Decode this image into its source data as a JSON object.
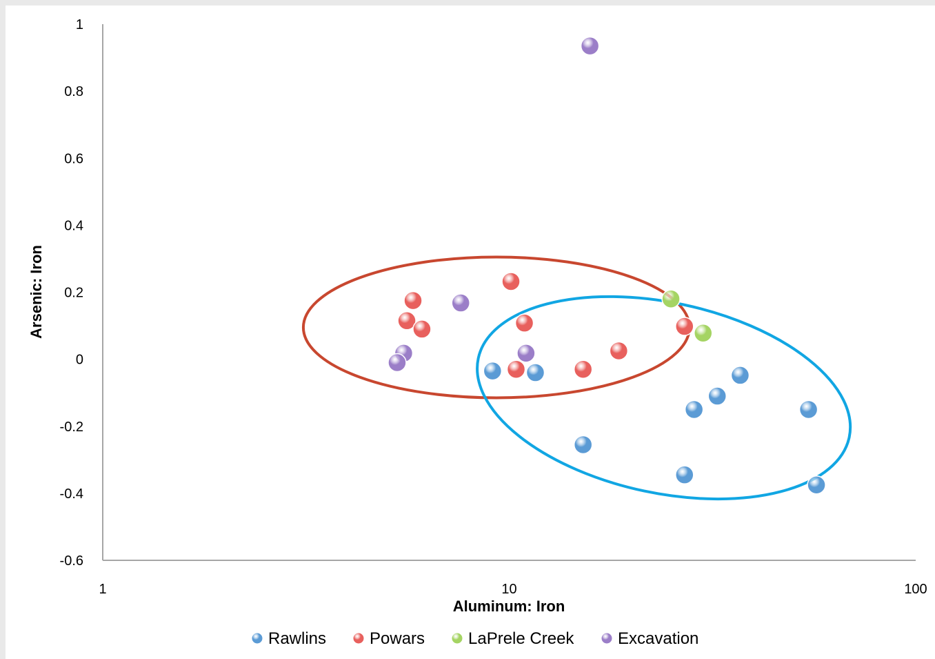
{
  "chart_data": {
    "type": "scatter",
    "xlabel": "Aluminum: Iron",
    "ylabel": "Arsenic: Iron",
    "x_scale": "log",
    "xlim": [
      1,
      100
    ],
    "ylim": [
      -0.6,
      1
    ],
    "x_ticks": [
      {
        "value": 1,
        "label": "1"
      },
      {
        "value": 10,
        "label": "10"
      },
      {
        "value": 100,
        "label": "100"
      }
    ],
    "y_ticks": [
      {
        "value": 1,
        "label": "1"
      },
      {
        "value": 0.8,
        "label": "0.8"
      },
      {
        "value": 0.6,
        "label": "0.6"
      },
      {
        "value": 0.4,
        "label": "0.4"
      },
      {
        "value": 0.2,
        "label": "0.2"
      },
      {
        "value": 0,
        "label": "0"
      },
      {
        "value": -0.2,
        "label": "-0.2"
      },
      {
        "value": -0.4,
        "label": "-0.4"
      },
      {
        "value": -0.6,
        "label": "-0.6"
      }
    ],
    "grid": false,
    "legend_position": "bottom",
    "series": [
      {
        "name": "Rawlins",
        "color": "#5b9bd5",
        "points": [
          [
            9.1,
            -0.035
          ],
          [
            11.6,
            -0.04
          ],
          [
            15.2,
            -0.255
          ],
          [
            27.0,
            -0.345
          ],
          [
            28.5,
            -0.15
          ],
          [
            32.5,
            -0.11
          ],
          [
            37.0,
            -0.048
          ],
          [
            54.5,
            -0.15
          ],
          [
            57.0,
            -0.375
          ]
        ]
      },
      {
        "name": "Powars",
        "color": "#e8605d",
        "points": [
          [
            5.8,
            0.175
          ],
          [
            5.6,
            0.115
          ],
          [
            6.1,
            0.09
          ],
          [
            10.1,
            0.232
          ],
          [
            10.9,
            0.108
          ],
          [
            10.4,
            -0.03
          ],
          [
            15.2,
            -0.03
          ],
          [
            18.6,
            0.025
          ],
          [
            27.0,
            0.098
          ]
        ]
      },
      {
        "name": "LaPrele Creek",
        "color": "#a5d463",
        "points": [
          [
            25.0,
            0.18
          ],
          [
            30.0,
            0.078
          ]
        ]
      },
      {
        "name": "Excavation",
        "color": "#9b7ec8",
        "points": [
          [
            15.8,
            0.935
          ],
          [
            7.6,
            0.168
          ],
          [
            5.5,
            0.018
          ],
          [
            5.3,
            -0.01
          ],
          [
            11.0,
            0.018
          ]
        ]
      }
    ],
    "ellipses": [
      {
        "color": "#c8472f",
        "cx": 9.3,
        "cy": 0.095,
        "rx_px": 280,
        "ry_px": 102,
        "rotate": 0
      },
      {
        "color": "#11a6e3",
        "cx": 24.0,
        "cy": -0.115,
        "rx_px": 275,
        "ry_px": 138,
        "rotate": 12
      }
    ]
  }
}
